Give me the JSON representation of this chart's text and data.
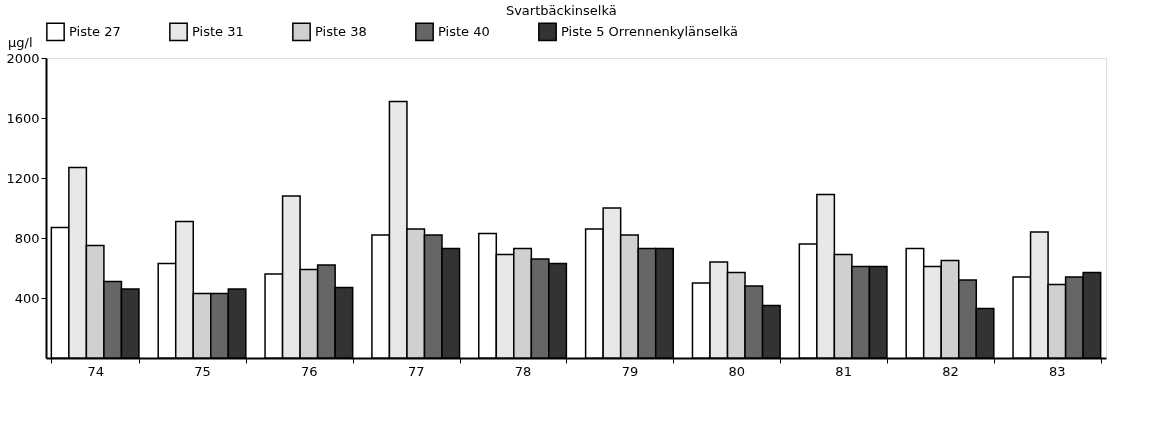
{
  "chart_data": {
    "type": "bar",
    "ylabel": "µg/l",
    "categories": [
      "74",
      "75",
      "76",
      "77",
      "78",
      "79",
      "80",
      "81",
      "82",
      "83"
    ],
    "series": [
      {
        "name": "Piste 27",
        "color": "#ffffff",
        "values": [
          870,
          630,
          560,
          820,
          830,
          860,
          500,
          760,
          730,
          540
        ]
      },
      {
        "name": "Piste 31",
        "color": "#e8e8e8",
        "values": [
          1270,
          910,
          1080,
          1710,
          690,
          1000,
          640,
          1090,
          610,
          840
        ]
      },
      {
        "name": "Piste 38",
        "color": "#d0d0d0",
        "values": [
          750,
          430,
          590,
          860,
          730,
          820,
          570,
          690,
          650,
          490
        ]
      },
      {
        "name": "Piste 40",
        "color": "#666666",
        "values": [
          510,
          430,
          620,
          820,
          660,
          730,
          480,
          610,
          520,
          540
        ]
      },
      {
        "name": "Piste 5  Orrennenkylänselkä",
        "color": "#333333",
        "values": [
          460,
          460,
          470,
          730,
          630,
          730,
          350,
          610,
          330,
          570
        ]
      }
    ],
    "ylim": [
      0,
      2000
    ],
    "yticks": [
      400,
      800,
      1200,
      1600,
      2000
    ],
    "annotations": [
      "Svartbäckinselkä"
    ],
    "grid": false,
    "legend": "top left"
  }
}
